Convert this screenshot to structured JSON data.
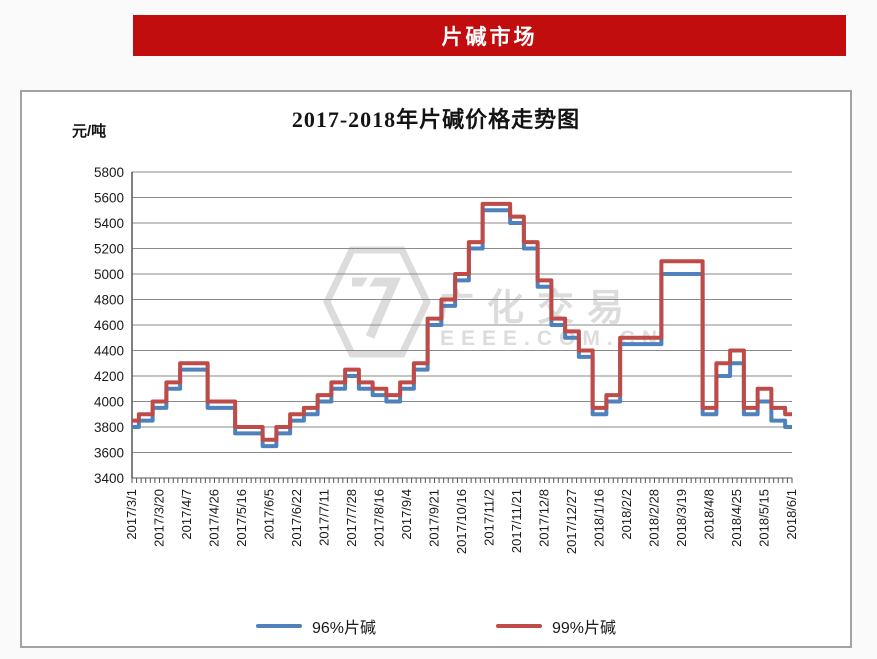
{
  "banner": {
    "title": "片碱市场",
    "bg_color": "#c10d0d",
    "text_color": "#ffffff"
  },
  "chart": {
    "title": "2017-2018年片碱价格走势图",
    "y_unit_label": "元/吨",
    "watermark": {
      "icon": "hexagon-7-logo",
      "line1": "广化交易",
      "line2": "EEEE.COM.CN"
    },
    "legend": [
      {
        "label": "96%片碱",
        "color": "#4F81BD"
      },
      {
        "label": "99%片碱",
        "color": "#BE4B48"
      }
    ]
  },
  "chart_data": {
    "type": "line",
    "title": "2017-2018年片碱价格走势图",
    "xlabel": "",
    "ylabel": "元/吨",
    "ylim": [
      3400,
      5800
    ],
    "grid": true,
    "legend_position": "bottom",
    "line_style": "step-center",
    "y_ticks": [
      5800,
      5600,
      5400,
      5200,
      5000,
      4800,
      4600,
      4400,
      4200,
      4000,
      3800,
      3600,
      3400
    ],
    "x_tick_labels": [
      "2017/3/1",
      "2017/3/20",
      "2017/4/7",
      "2017/4/26",
      "2017/5/16",
      "2017/6/5",
      "2017/6/22",
      "2017/7/11",
      "2017/7/28",
      "2017/8/16",
      "2017/9/4",
      "2017/9/21",
      "2017/10/16",
      "2017/11/2",
      "2017/11/21",
      "2017/12/8",
      "2017/12/27",
      "2018/1/16",
      "2018/2/2",
      "2018/2/28",
      "2018/3/19",
      "2018/4/8",
      "2018/4/25",
      "2018/5/15",
      "2018/6/1"
    ],
    "samples_per_tick_interval": 2,
    "series": [
      {
        "name": "96%片碱",
        "color": "#4F81BD",
        "values": [
          3800,
          3850,
          3950,
          4100,
          4250,
          4250,
          3950,
          3950,
          3750,
          3750,
          3650,
          3750,
          3850,
          3900,
          4000,
          4100,
          4200,
          4100,
          4050,
          4000,
          4100,
          4250,
          4600,
          4750,
          4950,
          5200,
          5500,
          5500,
          5400,
          5200,
          4900,
          4600,
          4500,
          4350,
          3900,
          4000,
          4450,
          4450,
          4450,
          5000,
          5000,
          5000,
          3900,
          4200,
          4300,
          3900,
          4000,
          3850,
          3800
        ]
      },
      {
        "name": "99%片碱",
        "color": "#BE4B48",
        "values": [
          3850,
          3900,
          4000,
          4150,
          4300,
          4300,
          4000,
          4000,
          3800,
          3800,
          3700,
          3800,
          3900,
          3950,
          4050,
          4150,
          4250,
          4150,
          4100,
          4050,
          4150,
          4300,
          4650,
          4800,
          5000,
          5250,
          5550,
          5550,
          5450,
          5250,
          4950,
          4650,
          4550,
          4400,
          3950,
          4050,
          4500,
          4500,
          4500,
          5100,
          5100,
          5100,
          3950,
          4300,
          4400,
          3950,
          4100,
          3950,
          3900
        ]
      }
    ]
  }
}
